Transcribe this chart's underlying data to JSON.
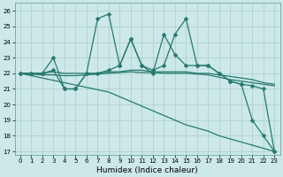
{
  "xlabel": "Humidex (Indice chaleur)",
  "bg_color": "#cce8e8",
  "grid_color": "#aacccc",
  "line_color": "#267a6e",
  "xlim": [
    -0.5,
    23.5
  ],
  "ylim": [
    16.8,
    26.5
  ],
  "xticks": [
    0,
    1,
    2,
    3,
    4,
    5,
    6,
    7,
    8,
    9,
    10,
    11,
    12,
    13,
    14,
    15,
    16,
    17,
    18,
    19,
    20,
    21,
    22,
    23
  ],
  "yticks": [
    17,
    18,
    19,
    20,
    21,
    22,
    23,
    24,
    25,
    26
  ],
  "series": [
    {
      "y": [
        22.0,
        22.0,
        22.0,
        23.0,
        21.0,
        21.0,
        22.0,
        25.5,
        25.8,
        22.5,
        24.2,
        22.5,
        22.2,
        22.5,
        24.5,
        25.5,
        22.5,
        22.5,
        22.0,
        21.5,
        21.3,
        21.2,
        21.0,
        17.0
      ],
      "marker": "D",
      "markersize": 2.5,
      "lw": 0.9
    },
    {
      "y": [
        22.0,
        22.0,
        22.0,
        22.2,
        21.0,
        21.0,
        22.0,
        22.0,
        22.2,
        22.5,
        24.2,
        22.5,
        22.0,
        24.5,
        23.2,
        22.5,
        22.5,
        22.5,
        22.0,
        21.5,
        21.3,
        19.0,
        18.0,
        17.0
      ],
      "marker": "D",
      "markersize": 2.5,
      "lw": 0.9
    },
    {
      "y": [
        22.0,
        22.0,
        22.0,
        22.1,
        22.0,
        22.0,
        22.0,
        22.0,
        22.1,
        22.1,
        22.2,
        22.2,
        22.1,
        22.1,
        22.1,
        22.1,
        22.0,
        22.0,
        21.9,
        21.8,
        21.7,
        21.6,
        21.4,
        21.3
      ],
      "marker": null,
      "markersize": null,
      "lw": 0.9
    },
    {
      "y": [
        22.0,
        21.95,
        21.9,
        21.9,
        21.85,
        21.85,
        21.9,
        21.95,
        22.0,
        22.05,
        22.1,
        22.05,
        22.05,
        22.0,
        22.0,
        22.0,
        21.95,
        21.9,
        21.75,
        21.6,
        21.5,
        21.4,
        21.3,
        21.2
      ],
      "marker": null,
      "markersize": null,
      "lw": 0.9
    },
    {
      "y": [
        22.0,
        21.85,
        21.7,
        21.55,
        21.4,
        21.25,
        21.1,
        20.95,
        20.8,
        20.5,
        20.2,
        19.9,
        19.6,
        19.3,
        19.0,
        18.7,
        18.5,
        18.3,
        18.0,
        17.8,
        17.6,
        17.4,
        17.2,
        17.0
      ],
      "marker": null,
      "markersize": null,
      "lw": 0.9
    }
  ]
}
